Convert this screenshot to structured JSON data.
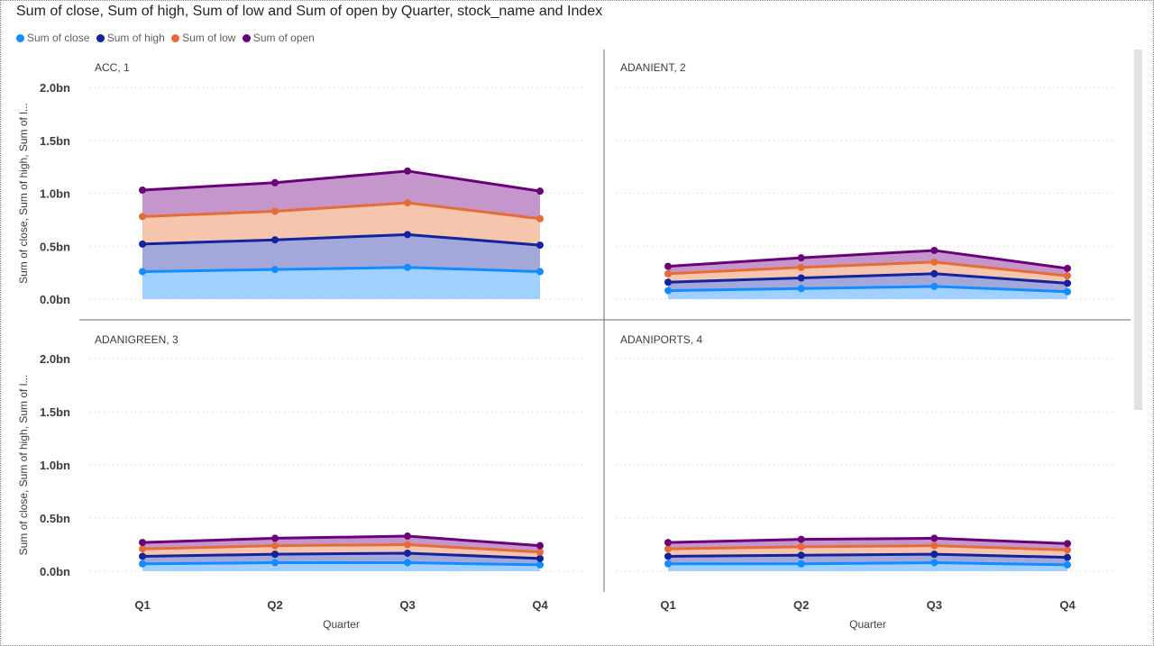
{
  "chart_data": {
    "type": "area",
    "title": "Sum of close, Sum of high, Sum of low and Sum of open by Quarter, stock_name and Index",
    "xlabel": "Quarter",
    "ylabel": "Sum of close, Sum of high, Sum of l...",
    "ylim": [
      0,
      2.0
    ],
    "y_ticks": [
      "0.0bn",
      "0.5bn",
      "1.0bn",
      "1.5bn",
      "2.0bn"
    ],
    "y_tick_values": [
      0,
      0.5,
      1.0,
      1.5,
      2.0
    ],
    "categories": [
      "Q1",
      "Q2",
      "Q3",
      "Q4"
    ],
    "stacked": true,
    "grid": "horizontal-dotted",
    "legend_position": "top-left",
    "series_meta": [
      {
        "name": "Sum of close",
        "color": "#118DFF",
        "fill": "#9FD0FF"
      },
      {
        "name": "Sum of high",
        "color": "#12239E",
        "fill": "#A3A7DA"
      },
      {
        "name": "Sum of low",
        "color": "#E66C37",
        "fill": "#F5C5AE"
      },
      {
        "name": "Sum of open",
        "color": "#6B007B",
        "fill": "#C596CC"
      }
    ],
    "panels": [
      {
        "label": "ACC, 1",
        "series": [
          {
            "name": "Sum of close",
            "values": [
              0.26,
              0.28,
              0.3,
              0.26
            ]
          },
          {
            "name": "Sum of high",
            "values": [
              0.26,
              0.28,
              0.31,
              0.25
            ]
          },
          {
            "name": "Sum of low",
            "values": [
              0.26,
              0.27,
              0.3,
              0.25
            ]
          },
          {
            "name": "Sum of open",
            "values": [
              0.25,
              0.27,
              0.3,
              0.26
            ]
          }
        ]
      },
      {
        "label": "ADANIENT, 2",
        "series": [
          {
            "name": "Sum of close",
            "values": [
              0.08,
              0.1,
              0.12,
              0.07
            ]
          },
          {
            "name": "Sum of high",
            "values": [
              0.08,
              0.1,
              0.12,
              0.08
            ]
          },
          {
            "name": "Sum of low",
            "values": [
              0.08,
              0.1,
              0.11,
              0.07
            ]
          },
          {
            "name": "Sum of open",
            "values": [
              0.07,
              0.09,
              0.11,
              0.07
            ]
          }
        ]
      },
      {
        "label": "ADANIGREEN, 3",
        "series": [
          {
            "name": "Sum of close",
            "values": [
              0.07,
              0.08,
              0.08,
              0.06
            ]
          },
          {
            "name": "Sum of high",
            "values": [
              0.07,
              0.08,
              0.09,
              0.06
            ]
          },
          {
            "name": "Sum of low",
            "values": [
              0.07,
              0.08,
              0.08,
              0.06
            ]
          },
          {
            "name": "Sum of open",
            "values": [
              0.06,
              0.07,
              0.08,
              0.06
            ]
          }
        ]
      },
      {
        "label": "ADANIPORTS, 4",
        "series": [
          {
            "name": "Sum of close",
            "values": [
              0.07,
              0.07,
              0.08,
              0.06
            ]
          },
          {
            "name": "Sum of high",
            "values": [
              0.07,
              0.08,
              0.08,
              0.07
            ]
          },
          {
            "name": "Sum of low",
            "values": [
              0.07,
              0.08,
              0.08,
              0.07
            ]
          },
          {
            "name": "Sum of open",
            "values": [
              0.06,
              0.07,
              0.07,
              0.06
            ]
          }
        ]
      }
    ]
  }
}
